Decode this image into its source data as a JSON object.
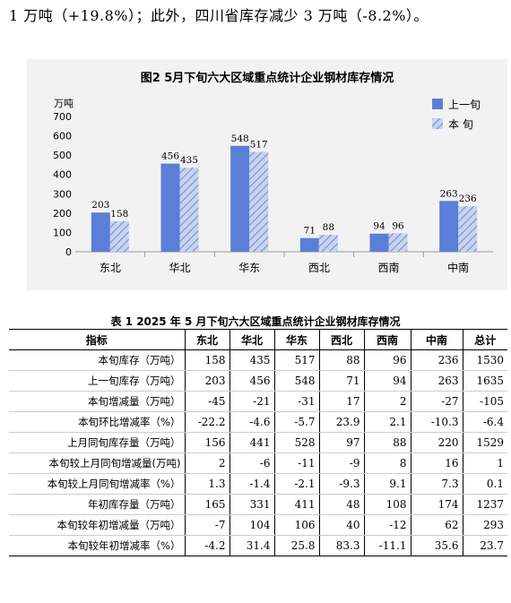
{
  "intro_text": "1 万吨（+19.8%）；此外，四川省库存减少 3 万吨（-8.2%）。",
  "chart_data": {
    "type": "bar",
    "title": "图2   5月下旬六大区域重点统计企业钢材库存情况",
    "ylabel": "万吨",
    "ylim": [
      0,
      700
    ],
    "yticks": [
      0,
      100,
      200,
      300,
      400,
      500,
      600,
      700
    ],
    "categories": [
      "东北",
      "华北",
      "华东",
      "西北",
      "西南",
      "中南"
    ],
    "series": [
      {
        "name": "上一旬",
        "values": [
          203,
          456,
          548,
          71,
          94,
          263
        ],
        "color": "#5b7ed6",
        "pattern": "solid"
      },
      {
        "name": "本  旬",
        "values": [
          158,
          435,
          517,
          88,
          96,
          236
        ],
        "color": "#a9b9e2",
        "pattern": "hatch"
      }
    ],
    "legend_position": "top-right",
    "grid": false
  },
  "table": {
    "title": "表 1   2025 年 5 月下旬六大区域重点统计企业钢材库存情况",
    "headers": [
      "指标",
      "东北",
      "华北",
      "华东",
      "西北",
      "西南",
      "中南",
      "总计"
    ],
    "rows": [
      [
        "本旬库存（万吨）",
        "158",
        "435",
        "517",
        "88",
        "96",
        "236",
        "1530"
      ],
      [
        "上一旬库存（万吨）",
        "203",
        "456",
        "548",
        "71",
        "94",
        "263",
        "1635"
      ],
      [
        "本旬增减量（万吨）",
        "-45",
        "-21",
        "-31",
        "17",
        "2",
        "-27",
        "-105"
      ],
      [
        "本旬环比增减率（%）",
        "-22.2",
        "-4.6",
        "-5.7",
        "23.9",
        "2.1",
        "-10.3",
        "-6.4"
      ],
      [
        "上月同旬库存量（万吨）",
        "156",
        "441",
        "528",
        "97",
        "88",
        "220",
        "1529"
      ],
      [
        "本旬较上月同旬增减量(万吨)",
        "2",
        "-6",
        "-11",
        "-9",
        "8",
        "16",
        "1"
      ],
      [
        "本旬较上月同旬增减率（%）",
        "1.3",
        "-1.4",
        "-2.1",
        "-9.3",
        "9.1",
        "7.3",
        "0.1"
      ],
      [
        "年初库存量（万吨）",
        "165",
        "331",
        "411",
        "48",
        "108",
        "174",
        "1237"
      ],
      [
        "本旬较年初增减量（万吨）",
        "-7",
        "104",
        "106",
        "40",
        "-12",
        "62",
        "293"
      ],
      [
        "本旬较年初增减率（%）",
        "-4.2",
        "31.4",
        "25.8",
        "83.3",
        "-11.1",
        "35.6",
        "23.7"
      ]
    ]
  }
}
